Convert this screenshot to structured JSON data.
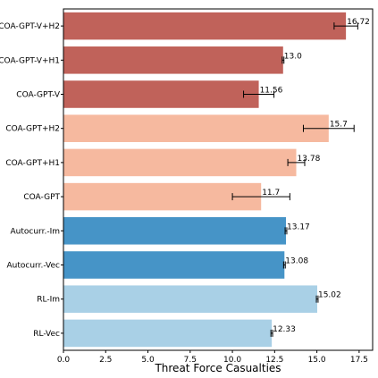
{
  "chart_data": {
    "type": "bar",
    "orientation": "horizontal",
    "xlabel": "Threat Force Casualties",
    "ylabel": "",
    "title": "",
    "xlim": [
      0,
      18.3
    ],
    "xticks": [
      0.0,
      2.5,
      5.0,
      7.5,
      10.0,
      12.5,
      15.0,
      17.5
    ],
    "xtick_labels": [
      "0.0",
      "2.5",
      "5.0",
      "7.5",
      "10.0",
      "12.5",
      "15.0",
      "17.5"
    ],
    "grid": false,
    "legend": "none",
    "categories": [
      "COA-GPT-V+H2",
      "COA-GPT-V+H1",
      "COA-GPT-V",
      "COA-GPT+H2",
      "COA-GPT+H1",
      "COA-GPT",
      "Autocurr.-Im",
      "Autocurr.-Vec",
      "RL-Im",
      "RL-Vec"
    ],
    "values": [
      16.72,
      13.0,
      11.56,
      15.7,
      13.78,
      11.7,
      13.17,
      13.08,
      15.02,
      12.33
    ],
    "value_labels": [
      "16.72",
      "13.0",
      "11.56",
      "15.7",
      "13.78",
      "11.7",
      "13.17",
      "13.08",
      "15.02",
      "12.33"
    ],
    "errors": [
      0.7,
      0.05,
      0.9,
      1.5,
      0.5,
      1.7,
      0.05,
      0.05,
      0.05,
      0.05
    ],
    "colors": [
      "#c0625a",
      "#c0625a",
      "#c0625a",
      "#f6b99f",
      "#f6b99f",
      "#f6b99f",
      "#4694c7",
      "#4694c7",
      "#a9d0e6",
      "#a9d0e6"
    ]
  }
}
